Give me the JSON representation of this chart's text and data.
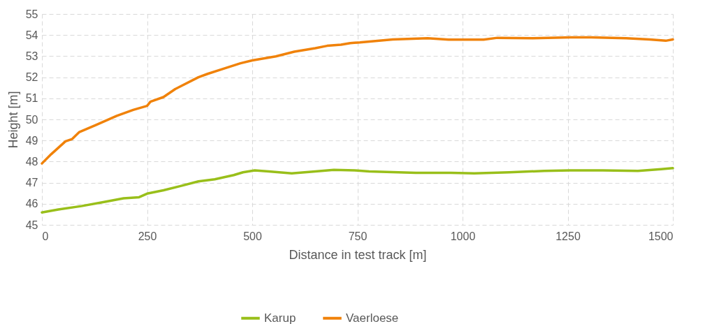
{
  "chart_data": {
    "type": "line",
    "xlabel": "Distance in test track [m]",
    "ylabel": "Height [m]",
    "xlim": [
      0,
      1500
    ],
    "xticks": [
      0,
      250,
      500,
      750,
      1000,
      1250,
      1500
    ],
    "ylim": [
      45,
      55
    ],
    "yticks": [
      45,
      46,
      47,
      48,
      49,
      50,
      51,
      52,
      53,
      54,
      55
    ],
    "grid": true,
    "legend": "bottom",
    "line_style": "solid",
    "marker": "none",
    "series": [
      {
        "name": "Karup",
        "color": "#99bf1a",
        "x": [
          0,
          39,
          94,
          150,
          194,
          231,
          250,
          289,
          333,
          372,
          411,
          456,
          478,
          506,
          539,
          594,
          650,
          694,
          744,
          778,
          889,
          972,
          1028,
          1111,
          1194,
          1256,
          1333,
          1417,
          1472,
          1500
        ],
        "values": [
          45.59,
          45.73,
          45.89,
          46.09,
          46.26,
          46.31,
          46.48,
          46.64,
          46.86,
          47.06,
          47.16,
          47.36,
          47.49,
          47.58,
          47.53,
          47.44,
          47.53,
          47.61,
          47.58,
          47.53,
          47.47,
          47.47,
          47.44,
          47.49,
          47.56,
          47.58,
          47.58,
          47.56,
          47.64,
          47.69
        ]
      },
      {
        "name": "Vaerloese",
        "color": "#f0820a",
        "x": [
          0,
          22,
          56,
          72,
          89,
          128,
          178,
          217,
          250,
          258,
          289,
          317,
          372,
          394,
          428,
          472,
          500,
          556,
          600,
          650,
          678,
          711,
          733,
          756,
          834,
          917,
          967,
          1050,
          1083,
          1167,
          1256,
          1306,
          1389,
          1444,
          1483,
          1500
        ],
        "values": [
          47.91,
          48.35,
          48.96,
          49.07,
          49.4,
          49.73,
          50.17,
          50.45,
          50.64,
          50.84,
          51.06,
          51.44,
          52.0,
          52.16,
          52.38,
          52.66,
          52.8,
          52.99,
          53.21,
          53.38,
          53.49,
          53.54,
          53.62,
          53.65,
          53.79,
          53.85,
          53.78,
          53.78,
          53.87,
          53.85,
          53.89,
          53.89,
          53.85,
          53.79,
          53.73,
          53.79
        ]
      }
    ]
  }
}
